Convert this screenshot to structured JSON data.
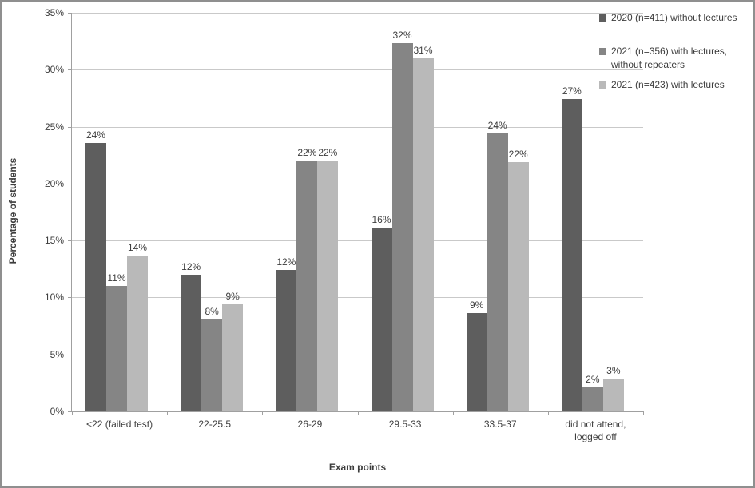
{
  "figure": {
    "background": "#ffffff",
    "border_color": "#8f8f8f"
  },
  "chart_data": {
    "type": "bar",
    "title": "",
    "xlabel": "Exam points",
    "ylabel": "Percentage of students",
    "categories": [
      "<22 (failed test)",
      "22-25.5",
      "26-29",
      "29.5-33",
      "33.5-37",
      "did not attend,\nlogged off"
    ],
    "series": [
      {
        "name": "2020 (n=411) without lectures",
        "color": "#5e5e5e",
        "values": [
          23.6,
          12.0,
          12.4,
          16.1,
          8.6,
          27.4
        ],
        "labels": [
          "24%",
          "12%",
          "12%",
          "16%",
          "9%",
          "27%"
        ]
      },
      {
        "name": "2021 (n=356) with lectures,\nwithout repeaters",
        "color": "#858585",
        "values": [
          11.0,
          8.1,
          22.0,
          32.3,
          24.4,
          2.1
        ],
        "labels": [
          "11%",
          "8%",
          "22%",
          "32%",
          "24%",
          "2%"
        ]
      },
      {
        "name": "2021 (n=423) with lectures",
        "color": "#b9b9b9",
        "values": [
          13.7,
          9.4,
          22.0,
          31.0,
          21.9,
          2.9
        ],
        "labels": [
          "14%",
          "9%",
          "22%",
          "31%",
          "22%",
          "3%"
        ]
      }
    ],
    "ylim": [
      0,
      35
    ],
    "ytick_step": 5,
    "ytick_labels": [
      "0%",
      "5%",
      "10%",
      "15%",
      "20%",
      "25%",
      "30%",
      "35%"
    ],
    "grid": true,
    "legend_position": "top-right",
    "gridline_color": "#c9c9c9",
    "axis_color": "#a0a0a0",
    "text_color": "#3d3d3d"
  }
}
